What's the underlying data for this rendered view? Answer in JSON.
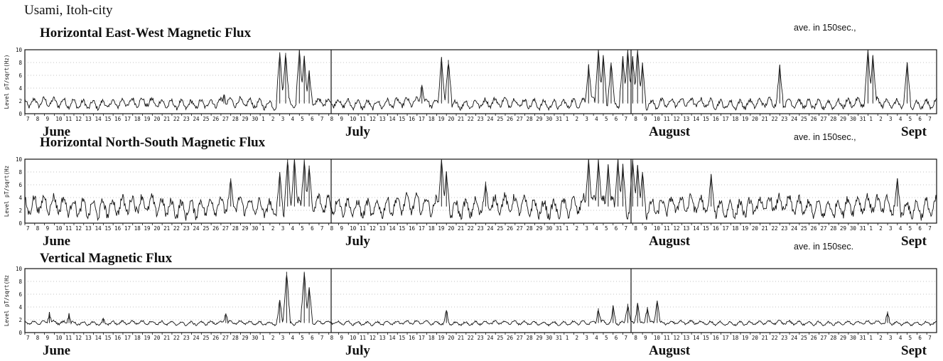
{
  "location": "Usami, Itoh-city",
  "chart_data": [
    {
      "type": "line",
      "title": "Horizontal East-West Magnetic Flux",
      "note": "ave. in 150sec.,",
      "ylabel": "Level pT/sqrt(Hz)",
      "ylim": [
        0,
        10
      ],
      "yticks": [
        "0",
        "2",
        "4",
        "6",
        "8",
        "10"
      ],
      "x_day_labels": [
        "7",
        "8",
        "9",
        "10",
        "11",
        "12",
        "13",
        "14",
        "15",
        "16",
        "17",
        "18",
        "19",
        "20",
        "21",
        "22",
        "23",
        "24",
        "25",
        "26",
        "27",
        "28",
        "29",
        "30",
        "1",
        "2",
        "3",
        "4",
        "5",
        "6",
        "7",
        "8",
        "9",
        "10",
        "11",
        "12",
        "13",
        "14",
        "15",
        "16",
        "17",
        "18",
        "19",
        "20",
        "21",
        "22",
        "23",
        "24",
        "25",
        "26",
        "27",
        "28",
        "29",
        "30",
        "31",
        "1",
        "2",
        "3",
        "4",
        "5",
        "6",
        "7",
        "8",
        "9",
        "10",
        "11",
        "12",
        "13",
        "14",
        "15",
        "16",
        "17",
        "18",
        "19",
        "20",
        "21",
        "22",
        "23",
        "24",
        "25",
        "26",
        "27",
        "28",
        "29",
        "30",
        "31",
        "1",
        "2",
        "3",
        "4",
        "5",
        "6",
        "7"
      ],
      "month_labels": [
        "June",
        "July",
        "August",
        "Sept"
      ],
      "baseline": 1.6,
      "diurnal_amplitude": 0.6,
      "spikes": [
        [
          20.3,
          3.0
        ],
        [
          26.0,
          9.6
        ],
        [
          26.6,
          9.5
        ],
        [
          28.0,
          10
        ],
        [
          28.5,
          9.0
        ],
        [
          29.0,
          6.5
        ],
        [
          40.5,
          4.5
        ],
        [
          42.5,
          8.6
        ],
        [
          43.2,
          8.4
        ],
        [
          57.5,
          7.5
        ],
        [
          58.5,
          10
        ],
        [
          59.0,
          9.0
        ],
        [
          59.8,
          8.0
        ],
        [
          61.0,
          9.0
        ],
        [
          61.5,
          10
        ],
        [
          62.0,
          9.0
        ],
        [
          62.5,
          10
        ],
        [
          63.0,
          8.0
        ],
        [
          77.0,
          7.5
        ],
        [
          86.0,
          10
        ],
        [
          86.5,
          9.0
        ],
        [
          90.0,
          8.0
        ]
      ],
      "vertical_markers": [
        31,
        62
      ]
    },
    {
      "type": "line",
      "title": "Horizontal North-South Magnetic Flux",
      "note": "ave. in 150sec.,",
      "ylabel": "Level pT/sqrt(Hz",
      "ylim": [
        0,
        10
      ],
      "yticks": [
        "0",
        "2",
        "4",
        "6",
        "8",
        "10"
      ],
      "x_day_labels": [
        "7",
        "8",
        "9",
        "10",
        "11",
        "12",
        "13",
        "14",
        "15",
        "16",
        "17",
        "18",
        "19",
        "20",
        "21",
        "22",
        "23",
        "24",
        "25",
        "26",
        "27",
        "28",
        "29",
        "30",
        "1",
        "2",
        "3",
        "4",
        "5",
        "6",
        "7",
        "8",
        "9",
        "10",
        "11",
        "12",
        "13",
        "14",
        "15",
        "16",
        "17",
        "18",
        "19",
        "20",
        "21",
        "22",
        "23",
        "24",
        "25",
        "26",
        "27",
        "28",
        "29",
        "30",
        "31",
        "1",
        "2",
        "3",
        "4",
        "5",
        "6",
        "7",
        "8",
        "9",
        "10",
        "11",
        "12",
        "13",
        "14",
        "15",
        "16",
        "17",
        "18",
        "19",
        "20",
        "21",
        "22",
        "23",
        "24",
        "25",
        "26",
        "27",
        "28",
        "29",
        "30",
        "31",
        "1",
        "2",
        "3",
        "4",
        "5",
        "6",
        "7"
      ],
      "month_labels": [
        "June",
        "July",
        "August",
        "Sept"
      ],
      "baseline": 2.6,
      "diurnal_amplitude": 1.2,
      "spikes": [
        [
          21.0,
          7.0
        ],
        [
          26.0,
          8.0
        ],
        [
          26.8,
          10
        ],
        [
          27.5,
          10
        ],
        [
          28.5,
          10
        ],
        [
          29.0,
          9.0
        ],
        [
          42.5,
          10
        ],
        [
          43.0,
          8.0
        ],
        [
          47.0,
          6.5
        ],
        [
          57.5,
          10
        ],
        [
          58.5,
          10
        ],
        [
          59.5,
          9.0
        ],
        [
          60.5,
          10
        ],
        [
          61.0,
          9.0
        ],
        [
          62.0,
          10
        ],
        [
          62.5,
          9.0
        ],
        [
          63.0,
          8.0
        ],
        [
          70.0,
          7.5
        ],
        [
          89.0,
          7.0
        ]
      ],
      "vertical_markers": [
        31,
        62
      ]
    },
    {
      "type": "line",
      "title": "Vertical Magnetic Flux",
      "note": "ave. in 150sec.",
      "ylabel": "Level pT/sqrt(Hz",
      "ylim": [
        0,
        10
      ],
      "yticks": [
        "0",
        "2",
        "4",
        "6",
        "8",
        "10"
      ],
      "x_day_labels": [
        "7",
        "8",
        "9",
        "10",
        "11",
        "12",
        "13",
        "14",
        "15",
        "16",
        "17",
        "18",
        "19",
        "20",
        "21",
        "22",
        "23",
        "24",
        "25",
        "26",
        "27",
        "28",
        "29",
        "30",
        "1",
        "2",
        "3",
        "4",
        "5",
        "6",
        "7",
        "8",
        "9",
        "10",
        "11",
        "12",
        "13",
        "14",
        "15",
        "16",
        "17",
        "18",
        "19",
        "20",
        "21",
        "22",
        "23",
        "24",
        "25",
        "26",
        "27",
        "28",
        "29",
        "30",
        "31",
        "1",
        "2",
        "3",
        "4",
        "5",
        "6",
        "7",
        "8",
        "9",
        "10",
        "11",
        "12",
        "13",
        "14",
        "15",
        "16",
        "17",
        "18",
        "19",
        "20",
        "21",
        "22",
        "23",
        "24",
        "25",
        "26",
        "27",
        "28",
        "29",
        "30",
        "31",
        "1",
        "2",
        "3",
        "4",
        "5",
        "6",
        "7"
      ],
      "month_labels": [
        "June",
        "July",
        "August",
        "Sept"
      ],
      "baseline": 1.5,
      "diurnal_amplitude": 0.25,
      "spikes": [
        [
          2.5,
          3.0
        ],
        [
          4.5,
          2.8
        ],
        [
          8.0,
          2.3
        ],
        [
          20.5,
          3.0
        ],
        [
          26.0,
          5.0
        ],
        [
          26.7,
          9.5
        ],
        [
          28.5,
          9.5
        ],
        [
          29.0,
          7.0
        ],
        [
          43.0,
          3.5
        ],
        [
          58.5,
          3.8
        ],
        [
          60.0,
          4.0
        ],
        [
          61.5,
          4.5
        ],
        [
          62.5,
          4.5
        ],
        [
          63.5,
          4.0
        ],
        [
          64.5,
          5.0
        ],
        [
          88.0,
          3.3
        ]
      ],
      "vertical_markers": [
        31,
        62
      ]
    }
  ]
}
